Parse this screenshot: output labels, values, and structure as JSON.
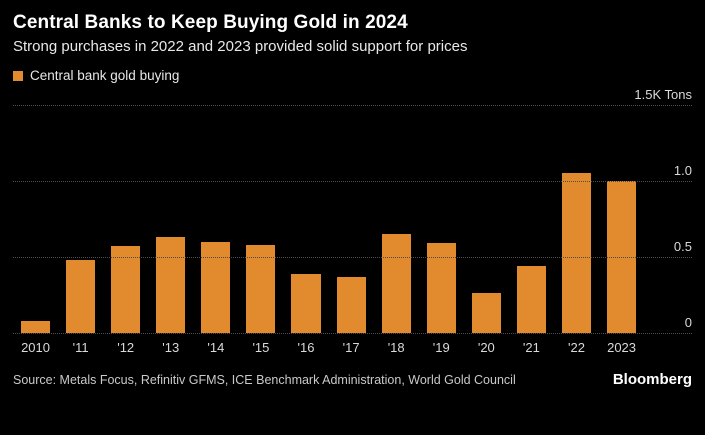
{
  "header": {
    "title": "Central Banks to Keep Buying Gold in 2024",
    "subtitle": "Strong purchases in 2022 and 2023 provided solid support for prices"
  },
  "legend": {
    "label": "Central bank gold buying",
    "color": "#E18A2E"
  },
  "chart_data": {
    "type": "bar",
    "categories": [
      "2010",
      "'11",
      "'12",
      "'13",
      "'14",
      "'15",
      "'16",
      "'17",
      "'18",
      "'19",
      "'20",
      "'21",
      "'22",
      "2023"
    ],
    "values": [
      0.08,
      0.48,
      0.57,
      0.63,
      0.6,
      0.58,
      0.39,
      0.37,
      0.65,
      0.59,
      0.26,
      0.44,
      1.05,
      1.0
    ],
    "series_label": "Central bank gold buying",
    "title": "Central Banks to Keep Buying Gold in 2024",
    "subtitle": "Strong purchases in 2022 and 2023 provided solid support for prices",
    "ylabel": "Tons",
    "ylim": [
      0,
      1.5
    ],
    "yticks": [
      {
        "value": 1.5,
        "label": "1.5K Tons"
      },
      {
        "value": 1.0,
        "label": "1.0"
      },
      {
        "value": 0.5,
        "label": "0.5"
      },
      {
        "value": 0.0,
        "label": "0"
      }
    ],
    "bar_color": "#E18A2E",
    "grid": true,
    "grid_style": "dotted",
    "background_color": "#000000",
    "legend_position": "top-left"
  },
  "footer": {
    "source": "Source: Metals Focus, Refinitiv GFMS, ICE Benchmark Administration, World Gold Council",
    "brand": "Bloomberg"
  }
}
